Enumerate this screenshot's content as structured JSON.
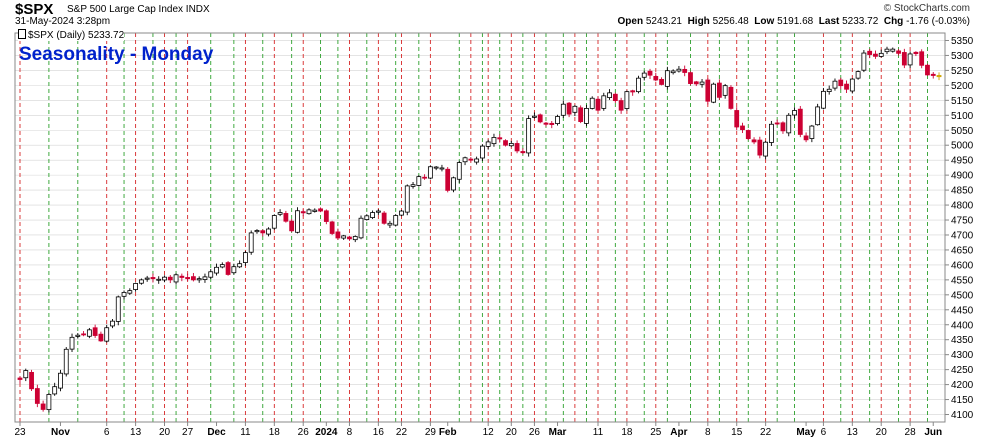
{
  "header": {
    "symbol": "$SPX",
    "description": "S&P 500 Large Cap Index  INDX",
    "date": "31-May-2024 3:28pm",
    "credit": "© StockCharts.com",
    "open_label": "Open",
    "open": "5243.21",
    "high_label": "High",
    "high": "5256.48",
    "low_label": "Low",
    "low": "5191.68",
    "last_label": "Last",
    "last": "5233.72",
    "chg_label": "Chg",
    "chg": "-1.76 (-0.03%)"
  },
  "legend": {
    "label": "$SPX (Daily) 5233.72"
  },
  "overlay_title": "Seasonality - Monday",
  "colors": {
    "up": "#000000",
    "down": "#cc0033",
    "last": "#ffcc00",
    "vline_red": "#d62728",
    "vline_green": "#2ca02c",
    "grid": "#d4d4d4",
    "title": "#0022cc"
  },
  "chart_data": {
    "type": "candlestick",
    "title": "Seasonality - Monday",
    "ylim": [
      4075,
      5375
    ],
    "yticks": [
      4100,
      4150,
      4200,
      4250,
      4300,
      4350,
      4400,
      4450,
      4500,
      4550,
      4600,
      4650,
      4700,
      4750,
      4800,
      4850,
      4900,
      4950,
      5000,
      5050,
      5100,
      5150,
      5200,
      5250,
      5300,
      5350
    ],
    "x_labels": [
      {
        "label": "23",
        "i": 0
      },
      {
        "label": "Nov",
        "i": 7,
        "bold": true
      },
      {
        "label": "6",
        "i": 15
      },
      {
        "label": "13",
        "i": 20
      },
      {
        "label": "20",
        "i": 25
      },
      {
        "label": "27",
        "i": 29
      },
      {
        "label": "Dec",
        "i": 34,
        "bold": true
      },
      {
        "label": "11",
        "i": 39
      },
      {
        "label": "18",
        "i": 44
      },
      {
        "label": "26",
        "i": 49
      },
      {
        "label": "2024",
        "i": 53,
        "bold": true
      },
      {
        "label": "8",
        "i": 57
      },
      {
        "label": "16",
        "i": 62
      },
      {
        "label": "22",
        "i": 66
      },
      {
        "label": "29",
        "i": 71
      },
      {
        "label": "Feb",
        "i": 74,
        "bold": true
      },
      {
        "label": "12",
        "i": 81
      },
      {
        "label": "20",
        "i": 85
      },
      {
        "label": "26",
        "i": 89
      },
      {
        "label": "Mar",
        "i": 93,
        "bold": true
      },
      {
        "label": "11",
        "i": 100
      },
      {
        "label": "18",
        "i": 105
      },
      {
        "label": "25",
        "i": 110
      },
      {
        "label": "Apr",
        "i": 114,
        "bold": true
      },
      {
        "label": "8",
        "i": 119
      },
      {
        "label": "15",
        "i": 124
      },
      {
        "label": "22",
        "i": 129
      },
      {
        "label": "May",
        "i": 136,
        "bold": true
      },
      {
        "label": "6",
        "i": 139
      },
      {
        "label": "13",
        "i": 144
      },
      {
        "label": "20",
        "i": 149
      },
      {
        "label": "28",
        "i": 154
      },
      {
        "label": "Jun",
        "i": 158,
        "bold": true
      }
    ],
    "red_lines": [
      0,
      15,
      20,
      25,
      29,
      39,
      44,
      49,
      57,
      62,
      66,
      71,
      78,
      81,
      85,
      89,
      96,
      100,
      105,
      110,
      119,
      124,
      129,
      139,
      144,
      149,
      154
    ],
    "green_lines": [
      5,
      10,
      18,
      23,
      27,
      33,
      37,
      42,
      47,
      52,
      55,
      60,
      65,
      69,
      76,
      80,
      83,
      87,
      91,
      94,
      98,
      103,
      108,
      112,
      116,
      121,
      126,
      131,
      134,
      142,
      147,
      152,
      157
    ],
    "closes": [
      4217,
      4247,
      4186,
      4137,
      4117,
      4167,
      4193,
      4238,
      4318,
      4358,
      4365,
      4366,
      4383,
      4364,
      4346,
      4390,
      4412,
      4493,
      4508,
      4514,
      4538,
      4550,
      4556,
      4554,
      4552,
      4559,
      4550,
      4567,
      4558,
      4554,
      4550,
      4554,
      4560,
      4577,
      4592,
      4601,
      4568,
      4594,
      4604,
      4641,
      4707,
      4715,
      4707,
      4720,
      4765,
      4775,
      4746,
      4714,
      4781,
      4774,
      4784,
      4783,
      4780,
      4745,
      4705,
      4690,
      4697,
      4687,
      4695,
      4756,
      4764,
      4775,
      4780,
      4739,
      4739,
      4765,
      4780,
      4864,
      4868,
      4895,
      4890,
      4928,
      4927,
      4924,
      4849,
      4891,
      4942,
      4958,
      4950,
      4954,
      4997,
      5011,
      5026,
      5021,
      5000,
      5006,
      4981,
      4975,
      5089,
      5097,
      5078,
      5070,
      5069,
      5096,
      5137,
      5104,
      5130,
      5079,
      5123,
      5157,
      5117,
      5165,
      5175,
      5149,
      5117,
      5179,
      5178,
      5224,
      5241,
      5234,
      5218,
      5203,
      5249,
      5248,
      5254,
      5243,
      5206,
      5205,
      5211,
      5147,
      5204,
      5160,
      5199,
      5123,
      5061,
      5052,
      5022,
      5011,
      4967,
      5010,
      5070,
      5071,
      5048,
      5100,
      5116,
      5036,
      5018,
      5064,
      5128,
      5180,
      5187,
      5214,
      5199,
      5187,
      5221,
      5246,
      5308,
      5303,
      5297,
      5307,
      5321,
      5321,
      5307,
      5268,
      5305,
      5306,
      5267,
      5235,
      5233,
      5233
    ]
  }
}
